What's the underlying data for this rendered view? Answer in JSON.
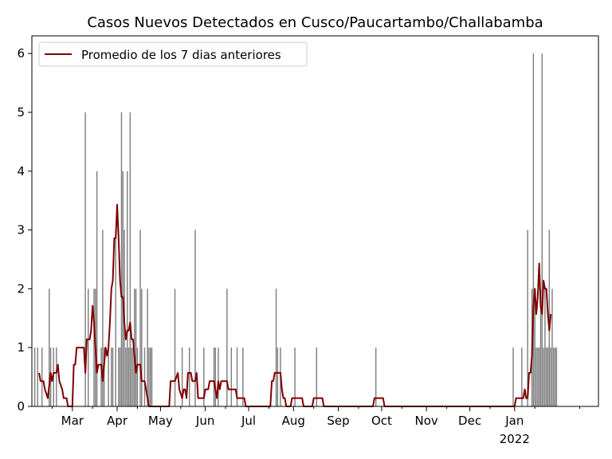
{
  "chart_data": {
    "type": "bar",
    "title": "Casos Nuevos Detectados en Cusco/Paucartambo/Challabamba",
    "xlabel": "",
    "ylabel": "",
    "ylim": [
      0,
      6.3
    ],
    "yticks": [
      0,
      1,
      2,
      3,
      4,
      5,
      6
    ],
    "x_range": [
      "2021-02-01",
      "2022-02-28"
    ],
    "xticks": [
      {
        "date": "2021-03-01",
        "label": "Mar"
      },
      {
        "date": "2021-04-01",
        "label": "Apr"
      },
      {
        "date": "2021-05-01",
        "label": "May"
      },
      {
        "date": "2021-06-01",
        "label": "Jun"
      },
      {
        "date": "2021-07-01",
        "label": "Jul"
      },
      {
        "date": "2021-08-01",
        "label": "Aug"
      },
      {
        "date": "2021-09-01",
        "label": "Sep"
      },
      {
        "date": "2021-10-01",
        "label": "Oct"
      },
      {
        "date": "2021-11-01",
        "label": "Nov"
      },
      {
        "date": "2021-12-01",
        "label": "Dec"
      },
      {
        "date": "2022-01-01",
        "label": "Jan",
        "sublabel": "2022"
      }
    ],
    "grid": false,
    "legend_position": "top-left",
    "colors": {
      "bars": "#808080",
      "line": "#800000"
    },
    "series": [
      {
        "kind": "bar",
        "points": [
          [
            "2021-02-03",
            1
          ],
          [
            "2021-02-05",
            1
          ],
          [
            "2021-02-08",
            1
          ],
          [
            "2021-02-13",
            2
          ],
          [
            "2021-02-14",
            1
          ],
          [
            "2021-02-16",
            1
          ],
          [
            "2021-02-18",
            1
          ],
          [
            "2021-03-10",
            5
          ],
          [
            "2021-03-12",
            2
          ],
          [
            "2021-03-16",
            2
          ],
          [
            "2021-03-17",
            2
          ],
          [
            "2021-03-18",
            4
          ],
          [
            "2021-03-21",
            1
          ],
          [
            "2021-03-22",
            3
          ],
          [
            "2021-03-23",
            1
          ],
          [
            "2021-03-26",
            1
          ],
          [
            "2021-03-28",
            1
          ],
          [
            "2021-03-29",
            1
          ],
          [
            "2021-03-31",
            3
          ],
          [
            "2021-04-02",
            1
          ],
          [
            "2021-04-03",
            1
          ],
          [
            "2021-04-04",
            5
          ],
          [
            "2021-04-05",
            4
          ],
          [
            "2021-04-06",
            3
          ],
          [
            "2021-04-07",
            1
          ],
          [
            "2021-04-08",
            4
          ],
          [
            "2021-04-09",
            1
          ],
          [
            "2021-04-10",
            5
          ],
          [
            "2021-04-11",
            1
          ],
          [
            "2021-04-12",
            1
          ],
          [
            "2021-04-13",
            2
          ],
          [
            "2021-04-14",
            2
          ],
          [
            "2021-04-15",
            1
          ],
          [
            "2021-04-17",
            3
          ],
          [
            "2021-04-18",
            2
          ],
          [
            "2021-04-20",
            1
          ],
          [
            "2021-04-22",
            2
          ],
          [
            "2021-04-23",
            1
          ],
          [
            "2021-04-24",
            1
          ],
          [
            "2021-04-25",
            1
          ],
          [
            "2021-05-11",
            2
          ],
          [
            "2021-05-16",
            1
          ],
          [
            "2021-05-21",
            1
          ],
          [
            "2021-05-25",
            3
          ],
          [
            "2021-05-31",
            1
          ],
          [
            "2021-06-07",
            1
          ],
          [
            "2021-06-08",
            1
          ],
          [
            "2021-06-10",
            1
          ],
          [
            "2021-06-16",
            2
          ],
          [
            "2021-06-19",
            1
          ],
          [
            "2021-06-23",
            1
          ],
          [
            "2021-06-27",
            1
          ],
          [
            "2021-07-20",
            2
          ],
          [
            "2021-07-21",
            1
          ],
          [
            "2021-07-23",
            1
          ],
          [
            "2021-08-02",
            1
          ],
          [
            "2021-08-17",
            1
          ],
          [
            "2021-09-27",
            1
          ],
          [
            "2021-12-31",
            1
          ],
          [
            "2022-01-06",
            1
          ],
          [
            "2022-01-10",
            3
          ],
          [
            "2022-01-13",
            2
          ],
          [
            "2022-01-14",
            6
          ],
          [
            "2022-01-15",
            2
          ],
          [
            "2022-01-16",
            1
          ],
          [
            "2022-01-17",
            1
          ],
          [
            "2022-01-18",
            1
          ],
          [
            "2022-01-19",
            2
          ],
          [
            "2022-01-20",
            6
          ],
          [
            "2022-01-21",
            1
          ],
          [
            "2022-01-22",
            2
          ],
          [
            "2022-01-23",
            1
          ],
          [
            "2022-01-24",
            1
          ],
          [
            "2022-01-25",
            3
          ],
          [
            "2022-01-26",
            1
          ],
          [
            "2022-01-27",
            2
          ],
          [
            "2022-01-28",
            1
          ],
          [
            "2022-01-29",
            1
          ],
          [
            "2022-01-30",
            1
          ]
        ]
      },
      {
        "kind": "line",
        "name": "Promedio de los 7 dias anteriores",
        "points": [
          [
            "2021-02-06",
            0.57
          ],
          [
            "2021-02-07",
            0.43
          ],
          [
            "2021-02-09",
            0.43
          ],
          [
            "2021-02-10",
            0.29
          ],
          [
            "2021-02-12",
            0.14
          ],
          [
            "2021-02-14",
            0.57
          ],
          [
            "2021-02-15",
            0.43
          ],
          [
            "2021-02-16",
            0.57
          ],
          [
            "2021-02-18",
            0.57
          ],
          [
            "2021-02-19",
            0.71
          ],
          [
            "2021-02-20",
            0.43
          ],
          [
            "2021-02-22",
            0.29
          ],
          [
            "2021-02-23",
            0.14
          ],
          [
            "2021-02-25",
            0.14
          ],
          [
            "2021-02-26",
            0
          ],
          [
            "2021-03-01",
            0
          ],
          [
            "2021-03-02",
            0.71
          ],
          [
            "2021-03-03",
            0.71
          ],
          [
            "2021-03-04",
            1.0
          ],
          [
            "2021-03-09",
            1.0
          ],
          [
            "2021-03-10",
            0.57
          ],
          [
            "2021-03-11",
            1.14
          ],
          [
            "2021-03-13",
            1.14
          ],
          [
            "2021-03-14",
            1.29
          ],
          [
            "2021-03-15",
            1.71
          ],
          [
            "2021-03-16",
            1.43
          ],
          [
            "2021-03-17",
            1.0
          ],
          [
            "2021-03-18",
            0.57
          ],
          [
            "2021-03-19",
            0.71
          ],
          [
            "2021-03-21",
            0.71
          ],
          [
            "2021-03-22",
            0.43
          ],
          [
            "2021-03-23",
            0.71
          ],
          [
            "2021-03-24",
            1.0
          ],
          [
            "2021-03-25",
            0.86
          ],
          [
            "2021-03-26",
            1.0
          ],
          [
            "2021-03-27",
            1.43
          ],
          [
            "2021-03-28",
            2.0
          ],
          [
            "2021-03-29",
            2.14
          ],
          [
            "2021-03-30",
            2.86
          ],
          [
            "2021-03-31",
            2.86
          ],
          [
            "2021-04-01",
            3.43
          ],
          [
            "2021-04-02",
            2.86
          ],
          [
            "2021-04-03",
            2.14
          ],
          [
            "2021-04-04",
            1.86
          ],
          [
            "2021-04-05",
            1.86
          ],
          [
            "2021-04-06",
            1.43
          ],
          [
            "2021-04-07",
            1.14
          ],
          [
            "2021-04-08",
            1.29
          ],
          [
            "2021-04-09",
            1.29
          ],
          [
            "2021-04-10",
            1.43
          ],
          [
            "2021-04-11",
            1.14
          ],
          [
            "2021-04-12",
            1.14
          ],
          [
            "2021-04-13",
            0.86
          ],
          [
            "2021-04-14",
            0.57
          ],
          [
            "2021-04-15",
            0.71
          ],
          [
            "2021-04-17",
            0.71
          ],
          [
            "2021-04-18",
            0.43
          ],
          [
            "2021-04-20",
            0.43
          ],
          [
            "2021-04-22",
            0.14
          ],
          [
            "2021-04-23",
            0
          ],
          [
            "2021-05-01",
            0
          ],
          [
            "2021-05-07",
            0
          ],
          [
            "2021-05-08",
            0.43
          ],
          [
            "2021-05-11",
            0.43
          ],
          [
            "2021-05-13",
            0.57
          ],
          [
            "2021-05-14",
            0.29
          ],
          [
            "2021-05-16",
            0.14
          ],
          [
            "2021-05-17",
            0.29
          ],
          [
            "2021-05-18",
            0.29
          ],
          [
            "2021-05-19",
            0.14
          ],
          [
            "2021-05-20",
            0.57
          ],
          [
            "2021-05-22",
            0.57
          ],
          [
            "2021-05-23",
            0.43
          ],
          [
            "2021-05-25",
            0.43
          ],
          [
            "2021-05-26",
            0.57
          ],
          [
            "2021-05-27",
            0.14
          ],
          [
            "2021-05-31",
            0.14
          ],
          [
            "2021-06-01",
            0.29
          ],
          [
            "2021-06-03",
            0.29
          ],
          [
            "2021-06-04",
            0.43
          ],
          [
            "2021-06-07",
            0.43
          ],
          [
            "2021-06-09",
            0.14
          ],
          [
            "2021-06-10",
            0.43
          ],
          [
            "2021-06-11",
            0.29
          ],
          [
            "2021-06-12",
            0.43
          ],
          [
            "2021-06-16",
            0.43
          ],
          [
            "2021-06-17",
            0.29
          ],
          [
            "2021-06-22",
            0.29
          ],
          [
            "2021-06-23",
            0.14
          ],
          [
            "2021-06-28",
            0.14
          ],
          [
            "2021-06-29",
            0
          ],
          [
            "2021-07-16",
            0
          ],
          [
            "2021-07-17",
            0.43
          ],
          [
            "2021-07-18",
            0.43
          ],
          [
            "2021-07-19",
            0.57
          ],
          [
            "2021-07-23",
            0.57
          ],
          [
            "2021-07-24",
            0.29
          ],
          [
            "2021-07-25",
            0.14
          ],
          [
            "2021-07-26",
            0.14
          ],
          [
            "2021-07-27",
            0
          ],
          [
            "2021-07-30",
            0
          ],
          [
            "2021-07-31",
            0.14
          ],
          [
            "2021-08-07",
            0.14
          ],
          [
            "2021-08-08",
            0
          ],
          [
            "2021-08-14",
            0
          ],
          [
            "2021-08-15",
            0.14
          ],
          [
            "2021-08-21",
            0.14
          ],
          [
            "2021-08-22",
            0
          ],
          [
            "2021-09-25",
            0
          ],
          [
            "2021-09-26",
            0.14
          ],
          [
            "2021-10-02",
            0.14
          ],
          [
            "2021-10-03",
            0
          ],
          [
            "2022-01-01",
            0
          ],
          [
            "2022-01-02",
            0.14
          ],
          [
            "2022-01-07",
            0.14
          ],
          [
            "2022-01-08",
            0.29
          ],
          [
            "2022-01-09",
            0.14
          ],
          [
            "2022-01-10",
            0.14
          ],
          [
            "2022-01-11",
            0.57
          ],
          [
            "2022-01-12",
            0.57
          ],
          [
            "2022-01-13",
            0.86
          ],
          [
            "2022-01-14",
            1.71
          ],
          [
            "2022-01-15",
            2.0
          ],
          [
            "2022-01-16",
            1.57
          ],
          [
            "2022-01-17",
            1.86
          ],
          [
            "2022-01-18",
            2.43
          ],
          [
            "2022-01-19",
            1.71
          ],
          [
            "2022-01-20",
            1.57
          ],
          [
            "2022-01-21",
            2.14
          ],
          [
            "2022-01-22",
            2.0
          ],
          [
            "2022-01-23",
            2.0
          ],
          [
            "2022-01-24",
            1.57
          ],
          [
            "2022-01-25",
            1.29
          ],
          [
            "2022-01-26",
            1.57
          ]
        ]
      }
    ]
  }
}
